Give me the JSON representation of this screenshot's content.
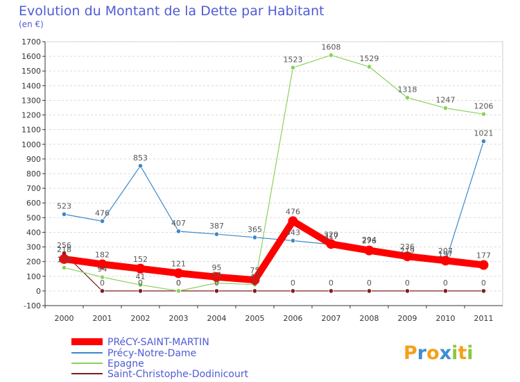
{
  "chart_data": {
    "type": "line",
    "title": "Evolution du Montant de la Dette par Habitant",
    "subtitle": "(en €)",
    "x": [
      "2000",
      "2001",
      "2002",
      "2003",
      "2004",
      "2005",
      "2006",
      "2007",
      "2008",
      "2009",
      "2010",
      "2011"
    ],
    "ylim": [
      -100,
      1700
    ],
    "yticks": [
      -100,
      0,
      100,
      200,
      300,
      400,
      500,
      600,
      700,
      800,
      900,
      1000,
      1100,
      1200,
      1300,
      1400,
      1500,
      1600,
      1700
    ],
    "grid": "horizontal-dashed",
    "legend_position": "bottom-left",
    "series": [
      {
        "name": "PRéCY-SAINT-MARTIN",
        "color": "#ff0000",
        "values": [
          218,
          182,
          152,
          121,
          95,
          75,
          476,
          320,
          276,
          236,
          207,
          177
        ]
      },
      {
        "name": "Précy-Notre-Dame",
        "color": "#3b88c8",
        "values": [
          523,
          476,
          853,
          407,
          387,
          365,
          343,
          317,
          294,
          219,
          197,
          1021
        ]
      },
      {
        "name": "Epagne",
        "color": "#8cd15a",
        "values": [
          159,
          94,
          41,
          0,
          54,
          43,
          1523,
          1608,
          1529,
          1318,
          1247,
          1206
        ]
      },
      {
        "name": "Saint-Christophe-Dodinicourt",
        "color": "#7b1f1f",
        "values": [
          256,
          0,
          0,
          0,
          0,
          0,
          0,
          0,
          0,
          0,
          0,
          0
        ]
      }
    ]
  },
  "brand": {
    "letters": [
      "P",
      "r",
      "o",
      "x",
      "i",
      "t",
      "i"
    ],
    "colors": [
      "#f6a019",
      "#3e8ed0",
      "#f6a019",
      "#3e8ed0",
      "#8cc63f",
      "#f6a019",
      "#8cc63f"
    ]
  }
}
